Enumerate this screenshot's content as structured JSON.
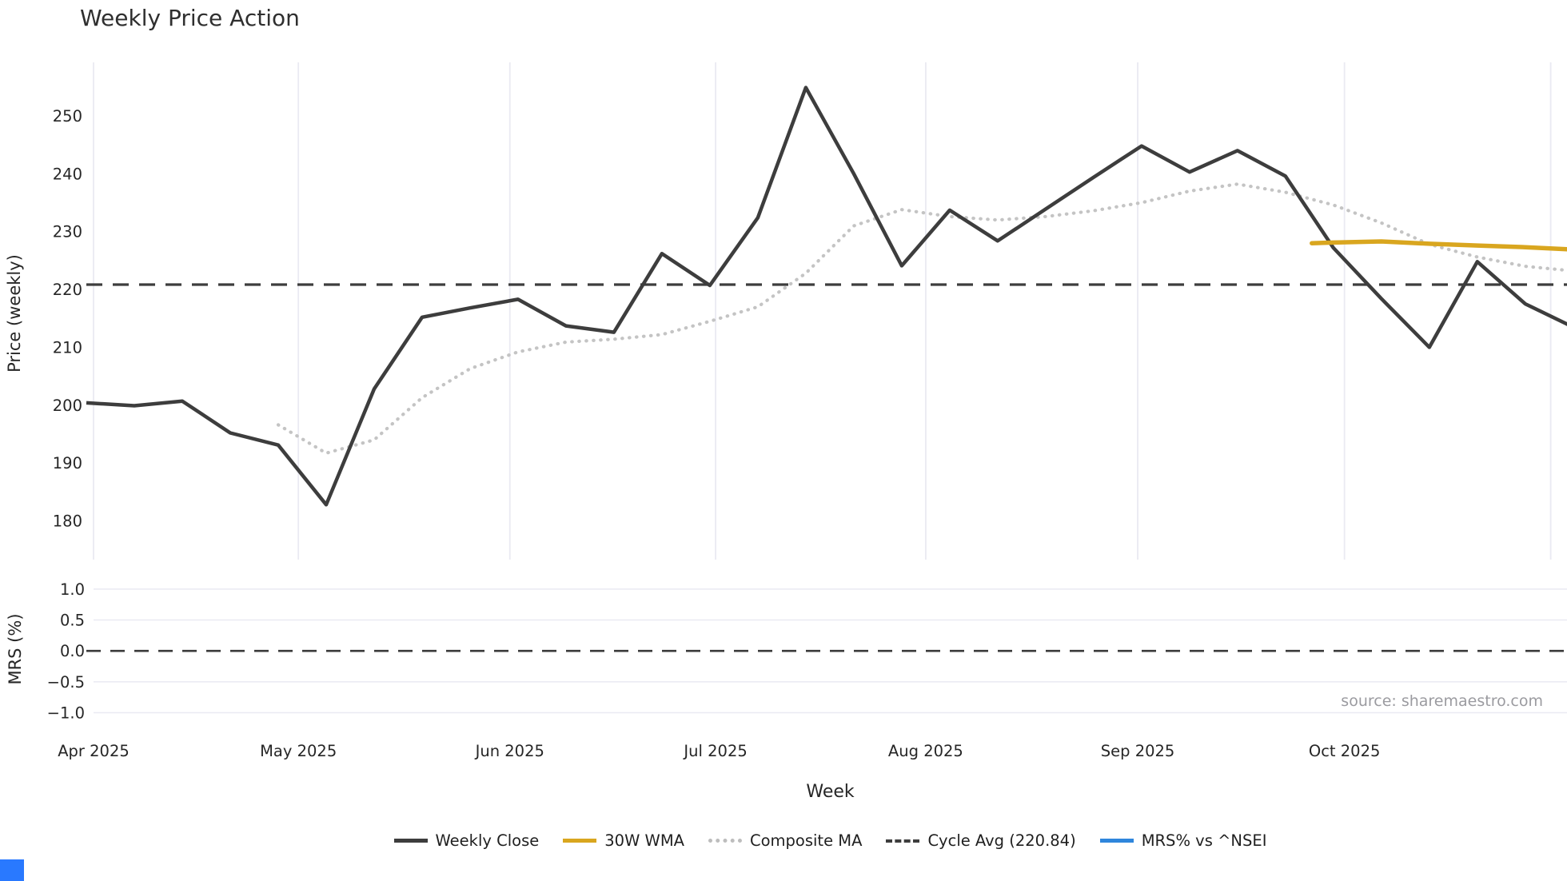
{
  "title": "Weekly Price Action",
  "labels": {
    "xlabel": "Week",
    "price_axis": "Price (weekly)",
    "mrs_axis": "MRS (%)"
  },
  "source_note": "source: sharemaestro.com",
  "colors": {
    "weekly_close": "#3d3d3d",
    "wma_30w": "#d9a61f",
    "composite_ma": "#c4c4c4",
    "cycle_avg": "#3d3d3d",
    "mrs": "#2f86dc",
    "gridline": "#eaeaf2",
    "tick_text": "#262626",
    "corner_block": "#2979ff"
  },
  "legend": [
    {
      "label": "Weekly Close",
      "style": "solid",
      "color": "#3d3d3d"
    },
    {
      "label": "30W WMA",
      "style": "solid",
      "color": "#d9a61f"
    },
    {
      "label": "Composite MA",
      "style": "dotted",
      "color": "#bdbdbd"
    },
    {
      "label": "Cycle Avg (220.84)",
      "style": "dashed",
      "color": "#3d3d3d"
    },
    {
      "label": "MRS% vs ^NSEI",
      "style": "solid",
      "color": "#2f86dc"
    }
  ],
  "chart_data": [
    {
      "type": "line",
      "panel": "price",
      "title": "Weekly Price Action",
      "xlabel": "Week",
      "ylabel": "Price (weekly)",
      "ylim": [
        173.3,
        258.7
      ],
      "y_ticks": [
        180,
        190,
        200,
        210,
        220,
        230,
        240,
        250
      ],
      "xlim_weeks": [
        0.15,
        30.87
      ],
      "x_month_ticks": [
        {
          "label": "Apr 2025",
          "week": 0.15
        },
        {
          "label": "May 2025",
          "week": 4.42
        },
        {
          "label": "Jun 2025",
          "week": 8.83
        },
        {
          "label": "Jul 2025",
          "week": 13.12
        },
        {
          "label": "Aug 2025",
          "week": 17.5
        },
        {
          "label": "Sep 2025",
          "week": 21.92
        },
        {
          "label": "Oct 2025",
          "week": 26.23
        },
        {
          "label": "",
          "week": 30.53
        }
      ],
      "cycle_avg_value": 220.84,
      "series": [
        {
          "name": "Weekly Close",
          "points": [
            [
              0,
              200.4
            ],
            [
              1,
              199.9
            ],
            [
              2,
              200.7
            ],
            [
              3,
              195.2
            ],
            [
              4,
              193.1
            ],
            [
              5,
              182.8
            ],
            [
              6,
              202.8
            ],
            [
              7,
              215.2
            ],
            [
              8,
              216.8
            ],
            [
              9,
              218.3
            ],
            [
              10,
              213.7
            ],
            [
              11,
              212.6
            ],
            [
              12,
              226.2
            ],
            [
              13,
              220.7
            ],
            [
              14,
              232.4
            ],
            [
              15,
              254.9
            ],
            [
              16,
              240.0
            ],
            [
              17,
              224.1
            ],
            [
              18,
              233.7
            ],
            [
              19,
              228.4
            ],
            [
              20,
              233.9
            ],
            [
              21,
              239.4
            ],
            [
              22,
              244.8
            ],
            [
              23,
              240.3
            ],
            [
              24,
              244.0
            ],
            [
              25,
              239.6
            ],
            [
              26,
              227.2
            ],
            [
              27,
              218.4
            ],
            [
              28,
              210.0
            ],
            [
              29,
              224.8
            ],
            [
              30,
              217.5
            ],
            [
              31,
              213.5
            ]
          ]
        },
        {
          "name": "Composite MA",
          "points": [
            [
              4,
              196.6
            ],
            [
              5,
              191.7
            ],
            [
              6,
              194.0
            ],
            [
              7,
              201.3
            ],
            [
              8,
              206.3
            ],
            [
              9,
              209.2
            ],
            [
              10,
              210.9
            ],
            [
              11,
              211.4
            ],
            [
              12,
              212.2
            ],
            [
              13,
              214.5
            ],
            [
              14,
              217.0
            ],
            [
              15,
              222.8
            ],
            [
              16,
              231.0
            ],
            [
              17,
              233.8
            ],
            [
              18,
              232.6
            ],
            [
              19,
              232.0
            ],
            [
              20,
              232.6
            ],
            [
              21,
              233.6
            ],
            [
              22,
              235.0
            ],
            [
              23,
              237.0
            ],
            [
              24,
              238.2
            ],
            [
              25,
              236.8
            ],
            [
              26,
              234.6
            ],
            [
              27,
              231.5
            ],
            [
              28,
              227.8
            ],
            [
              29,
              225.6
            ],
            [
              30,
              224.0
            ],
            [
              31,
              223.2
            ]
          ]
        },
        {
          "name": "30W WMA",
          "points": [
            [
              25.55,
              228.0
            ],
            [
              26,
              228.1
            ],
            [
              27,
              228.3
            ],
            [
              28,
              227.9
            ],
            [
              29,
              227.6
            ],
            [
              30,
              227.3
            ],
            [
              31,
              226.9
            ]
          ]
        }
      ]
    },
    {
      "type": "line",
      "panel": "mrs",
      "ylabel": "MRS (%)",
      "ylim": [
        -1.11,
        1.18
      ],
      "y_ticks": [
        1.0,
        0.5,
        0.0,
        -0.5,
        -1.0
      ],
      "zero_line": 0.0,
      "series": [
        {
          "name": "MRS% vs ^NSEI",
          "points": []
        }
      ]
    }
  ]
}
